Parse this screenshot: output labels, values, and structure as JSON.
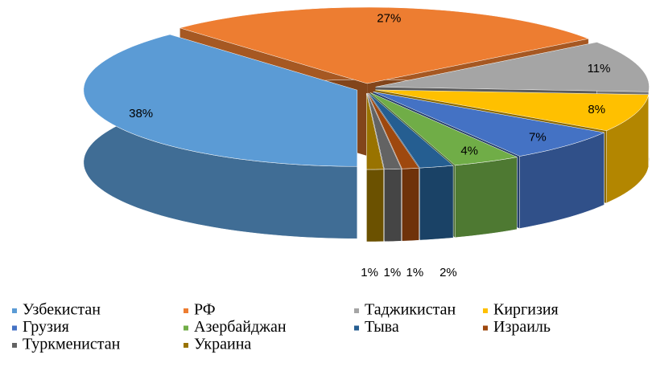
{
  "chart_data": {
    "type": "pie3d",
    "categories": [
      "Узбекистан",
      "РФ",
      "Таджикистан",
      "Киргизия",
      "Грузия",
      "Азербайджан",
      "Тыва",
      "Израиль",
      "Туркменистан",
      "Украина"
    ],
    "values": [
      38,
      27,
      11,
      8,
      7,
      4,
      2,
      1,
      1,
      1
    ],
    "value_labels": [
      "38%",
      "27%",
      "11%",
      "8%",
      "7%",
      "4%",
      "2%",
      "1%",
      "1%",
      "1%"
    ],
    "colors": [
      "#5b9bd5",
      "#ed7d31",
      "#a5a5a5",
      "#ffc000",
      "#4472c4",
      "#70ad47",
      "#255e91",
      "#9e480e",
      "#636363",
      "#997300"
    ],
    "legend": "bottom"
  }
}
